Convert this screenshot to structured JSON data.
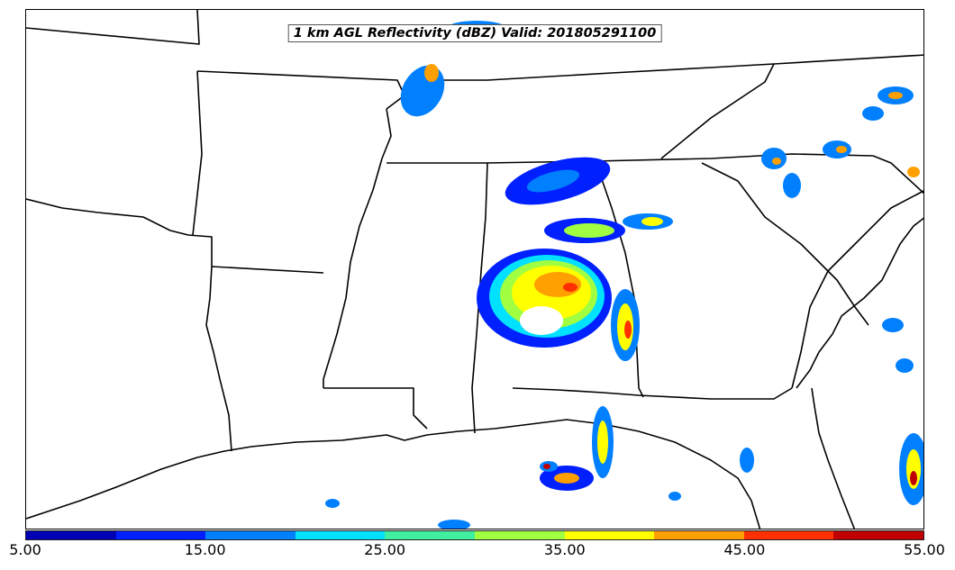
{
  "title": "1 km AGL Reflectivity (dBZ) Valid: 201805291100",
  "colorbar": {
    "colors": [
      "#0000b4",
      "#0020ff",
      "#0080ff",
      "#00e0ff",
      "#40f0a0",
      "#a0ff40",
      "#ffff00",
      "#ffa000",
      "#ff3000",
      "#c00000"
    ],
    "tick_labels": [
      "5.00",
      "15.00",
      "25.00",
      "35.00",
      "45.00",
      "55.00"
    ]
  }
}
